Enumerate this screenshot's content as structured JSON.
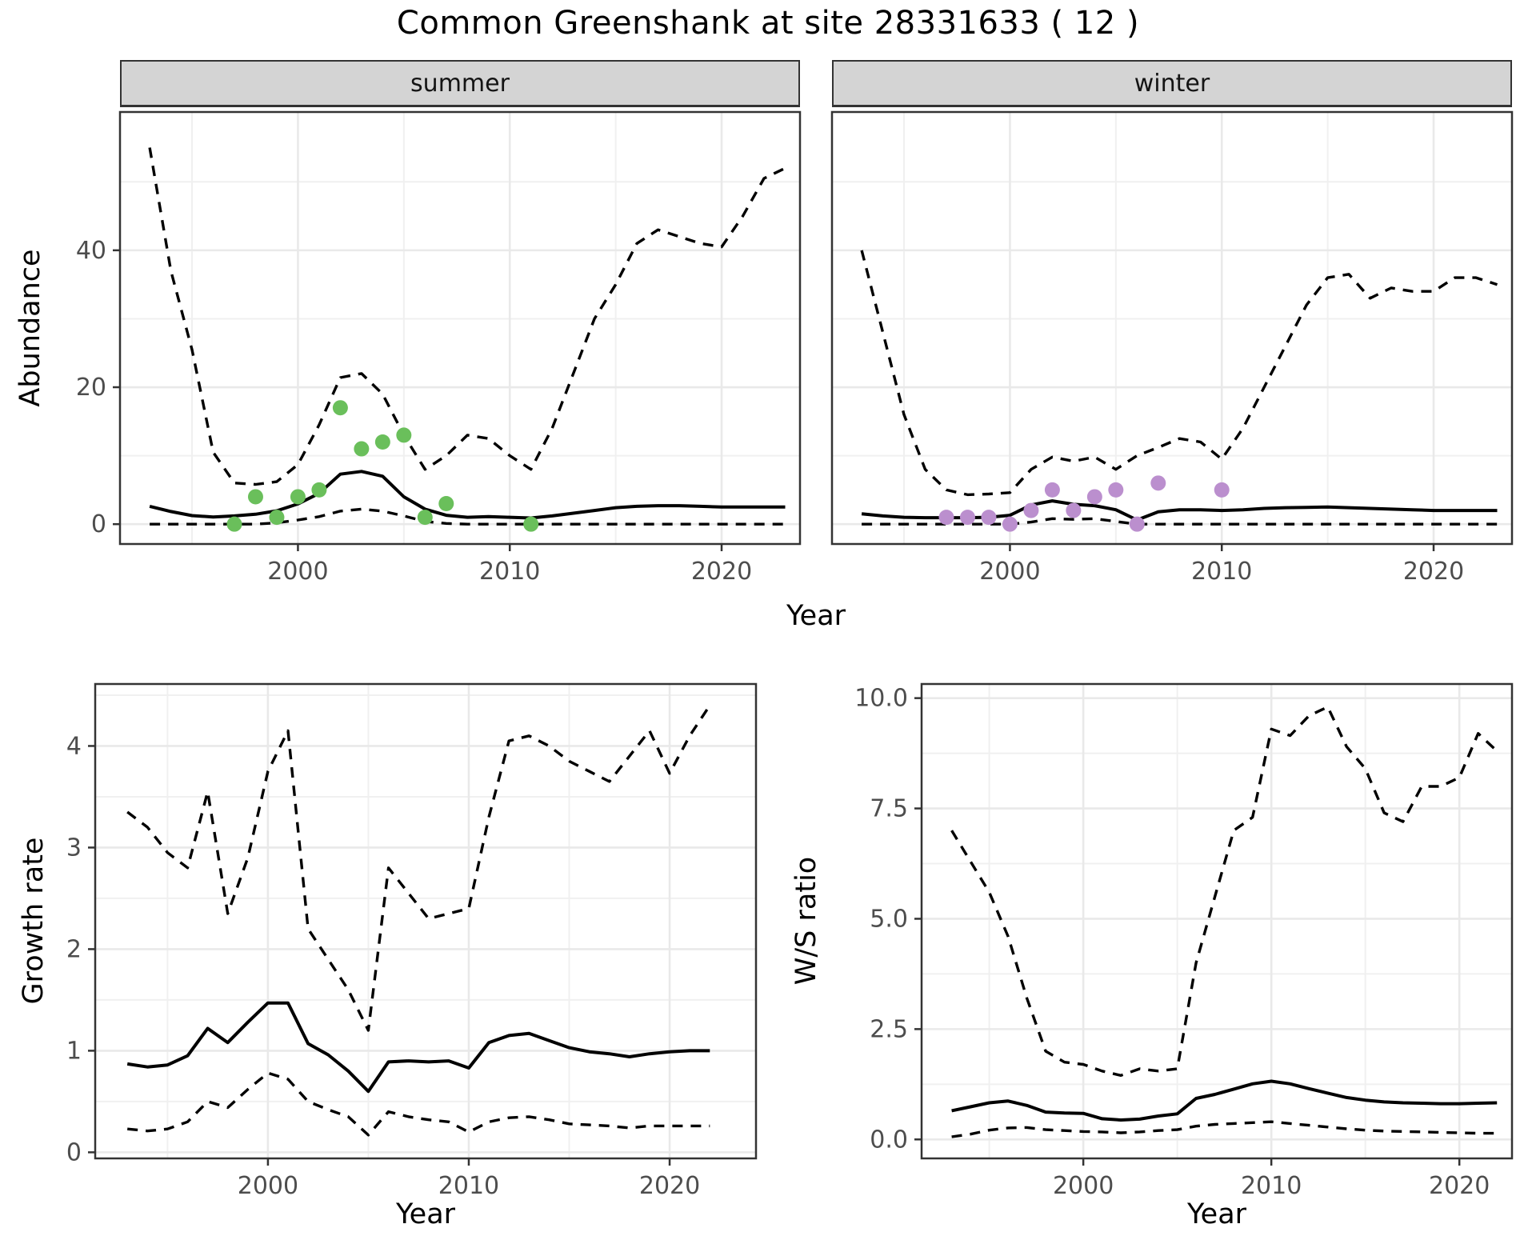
{
  "title": "Common Greenshank at site 28331633 ( 12 )",
  "facets": {
    "summer": "summer",
    "winter": "winter"
  },
  "axes": {
    "abundance_label": "Abundance",
    "year_label": "Year",
    "growth_label": "Growth rate",
    "ws_label": "W/S ratio"
  },
  "colors": {
    "summer_point": "#6abf5b",
    "winter_point": "#bb8fce",
    "line": "#000000",
    "grid_major": "#e9e9e9",
    "grid_minor": "#f0f0f0",
    "panel_border": "#333333",
    "strip_bg": "#d4d4d4",
    "tick_text": "#4d4d4d"
  },
  "chart_data": [
    {
      "id": "abundance-summer",
      "type": "line",
      "facet_label": "summer",
      "ylabel": "Abundance",
      "xlabel": "Year",
      "x": [
        1993,
        1994,
        1995,
        1996,
        1997,
        1998,
        1999,
        2000,
        2001,
        2002,
        2003,
        2004,
        2005,
        2006,
        2007,
        2008,
        2009,
        2010,
        2011,
        2012,
        2013,
        2014,
        2015,
        2016,
        2017,
        2018,
        2019,
        2020,
        2021,
        2022,
        2023
      ],
      "series": [
        {
          "name": "upper-95ci",
          "style": "dashed",
          "values": [
            55,
            37,
            25.5,
            10.5,
            6,
            5.8,
            6.2,
            8.7,
            14.5,
            21.4,
            22,
            19,
            13,
            8,
            10,
            13,
            12.5,
            10,
            8,
            14,
            22,
            30,
            35,
            41,
            43,
            42,
            41,
            40.5,
            45,
            50.5,
            52
          ]
        },
        {
          "name": "mean",
          "style": "solid",
          "values": [
            2.6,
            1.85,
            1.25,
            1.05,
            1.2,
            1.45,
            1.95,
            2.95,
            4.5,
            7.3,
            7.7,
            7.0,
            4.0,
            2.2,
            1.3,
            1.0,
            1.1,
            1.0,
            0.9,
            1.2,
            1.6,
            2.0,
            2.4,
            2.6,
            2.7,
            2.7,
            2.6,
            2.5,
            2.5,
            2.5,
            2.5
          ]
        },
        {
          "name": "lower-95ci",
          "style": "dashed",
          "values": [
            0,
            0,
            0,
            0,
            0,
            0,
            0.2,
            0.6,
            1.1,
            1.9,
            2.2,
            1.9,
            1.2,
            0.4,
            0.1,
            0,
            0,
            0,
            0,
            0,
            0,
            0,
            0,
            0,
            0,
            0,
            0,
            0,
            0,
            0,
            0
          ]
        }
      ],
      "points": {
        "color_key": "summer_point",
        "xy": [
          [
            1997,
            0
          ],
          [
            1998,
            4
          ],
          [
            1999,
            1
          ],
          [
            2000,
            4
          ],
          [
            2001,
            5
          ],
          [
            2002,
            17
          ],
          [
            2003,
            11
          ],
          [
            2004,
            12
          ],
          [
            2005,
            13
          ],
          [
            2006,
            1
          ],
          [
            2007,
            3
          ],
          [
            2011,
            0
          ]
        ]
      },
      "xlim": [
        1991.6,
        2023.7
      ],
      "ylim": [
        -2.9,
        60.2
      ],
      "xticks": [
        2000,
        2010,
        2020
      ],
      "xtick_labels": [
        "2000",
        "2010",
        "2020"
      ],
      "xticks_minor": [
        1995,
        2005,
        2015
      ],
      "yticks": [
        0,
        20,
        40
      ],
      "ytick_labels": [
        "0",
        "20",
        "40"
      ],
      "yticks_minor": [
        10,
        30,
        50
      ],
      "grid": true,
      "legend": "none"
    },
    {
      "id": "abundance-winter",
      "type": "line",
      "facet_label": "winter",
      "ylabel": "",
      "xlabel": "Year",
      "x": [
        1993,
        1994,
        1995,
        1996,
        1997,
        1998,
        1999,
        2000,
        2001,
        2002,
        2003,
        2004,
        2005,
        2006,
        2007,
        2008,
        2009,
        2010,
        2011,
        2012,
        2013,
        2014,
        2015,
        2016,
        2017,
        2018,
        2019,
        2020,
        2021,
        2022,
        2023
      ],
      "series": [
        {
          "name": "upper-95ci",
          "style": "dashed",
          "values": [
            40,
            28,
            16,
            8,
            5,
            4.3,
            4.4,
            4.6,
            8,
            9.8,
            9.2,
            9.8,
            8,
            10,
            11.2,
            12.5,
            12,
            9.5,
            14,
            20,
            26,
            32,
            36,
            36.5,
            33,
            34.5,
            34,
            34,
            36,
            36,
            35
          ]
        },
        {
          "name": "mean",
          "style": "solid",
          "values": [
            1.5,
            1.2,
            1.0,
            0.95,
            0.95,
            0.95,
            1.0,
            1.3,
            2.8,
            3.4,
            2.9,
            2.7,
            2.1,
            0.6,
            1.8,
            2.1,
            2.1,
            2.0,
            2.1,
            2.3,
            2.4,
            2.45,
            2.5,
            2.4,
            2.3,
            2.2,
            2.1,
            2.0,
            2.0,
            2.0,
            2.0
          ]
        },
        {
          "name": "lower-95ci",
          "style": "dashed",
          "values": [
            0,
            0,
            0,
            0,
            0,
            0,
            0,
            0,
            0.3,
            0.8,
            0.7,
            0.8,
            0.4,
            0,
            0,
            0,
            0,
            0,
            0,
            0,
            0,
            0,
            0,
            0,
            0,
            0,
            0,
            0,
            0,
            0,
            0
          ]
        }
      ],
      "points": {
        "color_key": "winter_point",
        "xy": [
          [
            1997,
            1
          ],
          [
            1998,
            1
          ],
          [
            1999,
            1
          ],
          [
            2000,
            0
          ],
          [
            2001,
            2
          ],
          [
            2002,
            5
          ],
          [
            2003,
            2
          ],
          [
            2004,
            4
          ],
          [
            2005,
            5
          ],
          [
            2006,
            0
          ],
          [
            2007,
            6
          ],
          [
            2010,
            5
          ]
        ]
      },
      "xlim": [
        1991.6,
        2023.7
      ],
      "ylim": [
        -2.9,
        60.2
      ],
      "xticks": [
        2000,
        2010,
        2020
      ],
      "xtick_labels": [
        "2000",
        "2010",
        "2020"
      ],
      "xticks_minor": [
        1995,
        2005,
        2015
      ],
      "yticks": [],
      "ytick_labels": [],
      "yticks_minor": [
        10,
        30,
        50
      ],
      "yticks_grid": [
        0,
        20,
        40
      ],
      "grid": true,
      "legend": "none"
    },
    {
      "id": "growth-rate",
      "type": "line",
      "facet_label": "",
      "ylabel": "Growth rate",
      "xlabel": "Year",
      "x": [
        1993,
        1994,
        1995,
        1996,
        1997,
        1998,
        1999,
        2000,
        2001,
        2002,
        2003,
        2004,
        2005,
        2006,
        2007,
        2008,
        2009,
        2010,
        2011,
        2012,
        2013,
        2014,
        2015,
        2016,
        2017,
        2018,
        2019,
        2020,
        2021,
        2022
      ],
      "series": [
        {
          "name": "upper-95ci",
          "style": "dashed",
          "values": [
            3.35,
            3.2,
            2.95,
            2.8,
            3.55,
            2.35,
            2.9,
            3.75,
            4.15,
            2.2,
            1.9,
            1.6,
            1.2,
            2.8,
            2.55,
            2.3,
            2.35,
            2.4,
            3.3,
            4.05,
            4.1,
            4.0,
            3.85,
            3.75,
            3.65,
            3.9,
            4.15,
            3.73,
            4.1,
            4.4
          ]
        },
        {
          "name": "mean",
          "style": "solid",
          "values": [
            0.87,
            0.84,
            0.86,
            0.95,
            1.22,
            1.08,
            1.28,
            1.47,
            1.47,
            1.07,
            0.96,
            0.8,
            0.6,
            0.89,
            0.9,
            0.89,
            0.9,
            0.83,
            1.08,
            1.15,
            1.17,
            1.1,
            1.03,
            0.99,
            0.97,
            0.94,
            0.97,
            0.99,
            1.0,
            1.0
          ]
        },
        {
          "name": "lower-95ci",
          "style": "dashed",
          "values": [
            0.23,
            0.21,
            0.23,
            0.3,
            0.5,
            0.44,
            0.62,
            0.78,
            0.72,
            0.5,
            0.42,
            0.35,
            0.17,
            0.4,
            0.35,
            0.32,
            0.3,
            0.2,
            0.3,
            0.34,
            0.35,
            0.32,
            0.28,
            0.27,
            0.26,
            0.24,
            0.26,
            0.26,
            0.26,
            0.26
          ]
        }
      ],
      "points": null,
      "xlim": [
        1991.4,
        2024.3
      ],
      "ylim": [
        -0.06,
        4.61
      ],
      "xticks": [
        2000,
        2010,
        2020
      ],
      "xtick_labels": [
        "2000",
        "2010",
        "2020"
      ],
      "xticks_minor": [
        1995,
        2005,
        2015
      ],
      "yticks": [
        0,
        1,
        2,
        3,
        4
      ],
      "ytick_labels": [
        "0",
        "1",
        "2",
        "3",
        "4"
      ],
      "yticks_minor": [
        0.5,
        1.5,
        2.5,
        3.5,
        4.5
      ],
      "grid": true,
      "legend": "none"
    },
    {
      "id": "ws-ratio",
      "type": "line",
      "facet_label": "",
      "ylabel": "W/S ratio",
      "xlabel": "Year",
      "x": [
        1993,
        1994,
        1995,
        1996,
        1997,
        1998,
        1999,
        2000,
        2001,
        2002,
        2003,
        2004,
        2005,
        2006,
        2007,
        2008,
        2009,
        2010,
        2011,
        2012,
        2013,
        2014,
        2015,
        2016,
        2017,
        2018,
        2019,
        2020,
        2021,
        2022
      ],
      "series": [
        {
          "name": "upper-95ci",
          "style": "dashed",
          "values": [
            7.0,
            6.3,
            5.6,
            4.6,
            3.2,
            2.0,
            1.75,
            1.7,
            1.55,
            1.45,
            1.6,
            1.55,
            1.6,
            4.0,
            5.5,
            7.0,
            7.3,
            9.3,
            9.15,
            9.6,
            9.8,
            8.9,
            8.4,
            7.4,
            7.2,
            8.0,
            8.0,
            8.2,
            9.2,
            8.8
          ]
        },
        {
          "name": "mean",
          "style": "solid",
          "values": [
            0.65,
            0.74,
            0.83,
            0.87,
            0.77,
            0.62,
            0.6,
            0.59,
            0.47,
            0.44,
            0.46,
            0.53,
            0.58,
            0.93,
            1.02,
            1.14,
            1.26,
            1.32,
            1.26,
            1.15,
            1.05,
            0.95,
            0.89,
            0.85,
            0.83,
            0.82,
            0.81,
            0.81,
            0.82,
            0.83
          ]
        },
        {
          "name": "lower-95ci",
          "style": "dashed",
          "values": [
            0.06,
            0.12,
            0.21,
            0.26,
            0.27,
            0.22,
            0.2,
            0.18,
            0.17,
            0.15,
            0.17,
            0.2,
            0.22,
            0.3,
            0.34,
            0.36,
            0.38,
            0.4,
            0.36,
            0.32,
            0.28,
            0.24,
            0.21,
            0.19,
            0.18,
            0.17,
            0.16,
            0.15,
            0.14,
            0.14
          ]
        }
      ],
      "points": null,
      "xlim": [
        1991.4,
        2022.8
      ],
      "ylim": [
        -0.43,
        10.32
      ],
      "xticks": [
        2000,
        2010,
        2020
      ],
      "xtick_labels": [
        "2000",
        "2010",
        "2020"
      ],
      "xticks_minor": [
        1995,
        2005,
        2015
      ],
      "yticks": [
        0,
        2.5,
        5,
        7.5,
        10
      ],
      "ytick_labels": [
        "0.0",
        "2.5",
        "5.0",
        "7.5",
        "10.0"
      ],
      "yticks_minor": [
        1.25,
        3.75,
        6.25,
        8.75
      ],
      "grid": true,
      "legend": "none"
    }
  ]
}
